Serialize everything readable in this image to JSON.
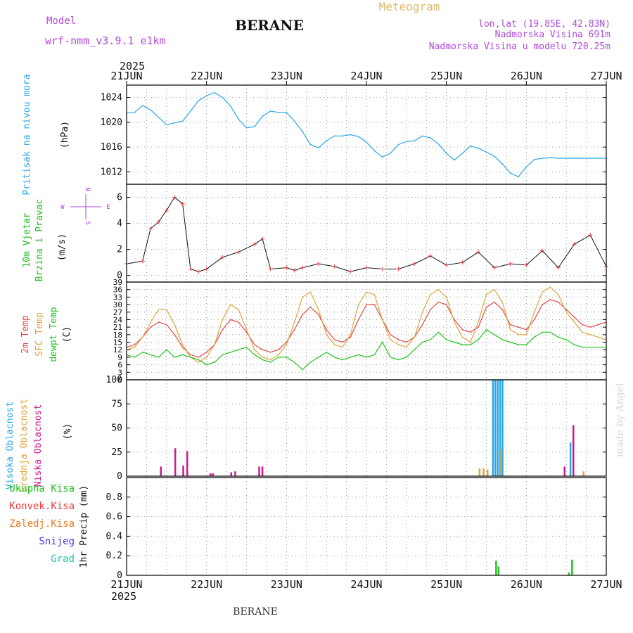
{
  "header": {
    "model_label": "Model",
    "model_name": "wrf-nmm_v3.9.1 e1km",
    "station": "BERANE",
    "product": "Meteogram",
    "lonlat": "lon,lat (19.85E, 42.83N)",
    "elevation": "Nadmorska Visina 691m",
    "model_elevation": "Nadmorska Visina u modelu 720.25m",
    "year_top": "2025",
    "year_bottom": "2025",
    "footer_station": "BERANE",
    "credit": "made by Angel",
    "wind_compass": {
      "n": "N",
      "s": "S",
      "e": "E",
      "w": "W"
    }
  },
  "colors": {
    "pressure": "#2aa6e6",
    "wind_axis": "#22bb22",
    "t2m": "#e04a4a",
    "sfc": "#e0a43c",
    "dew": "#22c322",
    "cloud_high": "#2aa6e6",
    "cloud_mid": "#e0a43c",
    "cloud_low": "#cc1a8a",
    "precip_total": "#22c322",
    "precip_conv": "#ee3a3a",
    "precip_frz": "#ee7a22",
    "precip_snow": "#4a3ae0",
    "precip_grad": "#22c3a8",
    "header_purple": "#b04ad8",
    "header_orange": "#e0b86a"
  },
  "chart_data": [
    {
      "type": "line",
      "panel": "pressure",
      "ylabel_lines": [
        "Pritisak na nivou mora"
      ],
      "unit": "(hPa)",
      "ylim": [
        1010,
        1026
      ],
      "yticks": [
        1012,
        1016,
        1020,
        1024
      ],
      "x_ticks": [
        "21JUN",
        "22JUN",
        "23JUN",
        "24JUN",
        "25JUN",
        "26JUN",
        "27JUN"
      ],
      "grid": true,
      "series": [
        {
          "x": [
            0,
            0.1,
            0.2,
            0.3,
            0.5,
            0.6,
            0.7,
            0.8,
            0.9,
            1.0,
            1.1,
            1.2,
            1.3,
            1.4,
            1.5,
            1.6,
            1.7,
            1.8,
            1.9,
            2.0,
            2.1,
            2.2,
            2.3,
            2.4,
            2.5,
            2.6,
            2.7,
            2.8,
            2.9,
            3.0,
            3.1,
            3.2,
            3.3,
            3.4,
            3.5,
            3.6,
            3.7,
            3.8,
            3.9,
            4.0,
            4.1,
            4.2,
            4.3,
            4.4,
            4.5,
            4.6,
            4.7,
            4.8,
            4.9,
            5.0,
            5.1,
            5.2,
            5.3,
            5.4,
            5.5,
            5.6,
            5.7,
            5.8,
            5.9,
            6.0
          ],
          "values": [
            1021.5,
            1021.6,
            1022.7,
            1022.0,
            1019.6,
            1019.9,
            1020.2,
            1021.8,
            1023.5,
            1024.3,
            1024.8,
            1024.0,
            1022.6,
            1020.5,
            1019.1,
            1019.3,
            1021.0,
            1021.8,
            1021.6,
            1021.6,
            1020.2,
            1018.5,
            1016.4,
            1015.9,
            1017.0,
            1017.8,
            1017.8,
            1018.0,
            1017.7,
            1016.8,
            1015.4,
            1014.4,
            1015.0,
            1016.4,
            1016.9,
            1017.0,
            1017.8,
            1017.5,
            1016.5,
            1015.0,
            1013.9,
            1015.0,
            1016.2,
            1015.8,
            1015.2,
            1014.5,
            1013.3,
            1011.8,
            1011.2,
            1012.8,
            1014.0,
            1014.2,
            1014.3,
            1014.2,
            1014.2,
            1014.2,
            1014.2,
            1014.2,
            1014.2,
            1014.2
          ]
        }
      ]
    },
    {
      "type": "line",
      "panel": "wind",
      "ylabel_lines": [
        "10m Vjetar",
        "Brzina i Pravac"
      ],
      "unit": "(m/s)",
      "ylim": [
        -0.5,
        7
      ],
      "yticks": [
        0,
        2,
        4,
        6
      ],
      "grid": true,
      "series": [
        {
          "x": [
            0,
            0.2,
            0.3,
            0.4,
            0.5,
            0.6,
            0.7,
            0.8,
            0.9,
            1.0,
            1.2,
            1.4,
            1.6,
            1.7,
            1.8,
            2.0,
            2.1,
            2.2,
            2.4,
            2.6,
            2.8,
            3.0,
            3.2,
            3.4,
            3.6,
            3.8,
            4.0,
            4.2,
            4.4,
            4.6,
            4.8,
            5.0,
            5.2,
            5.4,
            5.6,
            5.8,
            6.0
          ],
          "values": [
            0.9,
            1.1,
            3.6,
            4.1,
            5.0,
            6.0,
            5.5,
            0.5,
            0.3,
            0.5,
            1.4,
            1.8,
            2.4,
            2.8,
            0.5,
            0.6,
            0.4,
            0.6,
            0.9,
            0.7,
            0.3,
            0.6,
            0.5,
            0.5,
            0.9,
            1.5,
            0.8,
            1.0,
            1.8,
            0.6,
            0.9,
            0.8,
            1.9,
            0.6,
            2.4,
            3.1,
            0.7
          ]
        }
      ]
    },
    {
      "type": "line",
      "panel": "temperature",
      "ylabel_lines": [
        "2m Temp",
        "SFC Temp",
        "dewpt Temp"
      ],
      "unit": "(C)",
      "ylim": [
        0,
        39
      ],
      "yticks": [
        0,
        3,
        6,
        9,
        12,
        15,
        18,
        21,
        24,
        27,
        30,
        33,
        36,
        39
      ],
      "grid": true,
      "series": [
        {
          "name": "2m Temp",
          "x": [
            0,
            0.1,
            0.2,
            0.3,
            0.4,
            0.5,
            0.6,
            0.7,
            0.8,
            0.9,
            1.0,
            1.1,
            1.2,
            1.3,
            1.4,
            1.5,
            1.6,
            1.7,
            1.8,
            1.9,
            2.0,
            2.1,
            2.2,
            2.3,
            2.4,
            2.5,
            2.6,
            2.7,
            2.8,
            2.9,
            3.0,
            3.1,
            3.2,
            3.3,
            3.4,
            3.5,
            3.6,
            3.7,
            3.8,
            3.9,
            4.0,
            4.1,
            4.2,
            4.3,
            4.4,
            4.5,
            4.6,
            4.7,
            4.8,
            4.9,
            5.0,
            5.1,
            5.2,
            5.3,
            5.4,
            5.5,
            5.6,
            5.7,
            5.8,
            5.9,
            6.0
          ],
          "values": [
            13,
            14,
            17,
            21,
            23,
            22,
            18,
            13,
            10,
            9,
            11,
            14,
            20,
            24,
            23,
            19,
            14,
            12,
            11,
            12,
            15,
            20,
            26,
            29,
            26,
            20,
            16,
            15,
            17,
            24,
            30,
            30,
            24,
            18,
            16,
            15,
            17,
            22,
            28,
            31,
            30,
            24,
            20,
            19,
            21,
            29,
            31,
            28,
            22,
            21,
            20,
            24,
            30,
            32,
            31,
            28,
            25,
            22,
            21,
            22,
            23
          ]
        },
        {
          "name": "SFC Temp",
          "x": [
            0,
            0.1,
            0.2,
            0.3,
            0.4,
            0.5,
            0.6,
            0.7,
            0.8,
            0.9,
            1.0,
            1.1,
            1.2,
            1.3,
            1.4,
            1.5,
            1.6,
            1.7,
            1.8,
            1.9,
            2.0,
            2.1,
            2.2,
            2.3,
            2.4,
            2.5,
            2.6,
            2.7,
            2.8,
            2.9,
            3.0,
            3.1,
            3.2,
            3.3,
            3.4,
            3.5,
            3.6,
            3.7,
            3.8,
            3.9,
            4.0,
            4.1,
            4.2,
            4.3,
            4.4,
            4.5,
            4.6,
            4.7,
            4.8,
            4.9,
            5.0,
            5.1,
            5.2,
            5.3,
            5.4,
            5.5,
            5.6,
            5.7,
            5.8,
            5.9,
            6.0
          ],
          "values": [
            12,
            13,
            17,
            23,
            28,
            28,
            22,
            14,
            9,
            7,
            9,
            14,
            24,
            30,
            28,
            20,
            12,
            9,
            8,
            10,
            14,
            23,
            33,
            35,
            28,
            18,
            14,
            13,
            18,
            30,
            35,
            34,
            24,
            16,
            14,
            13,
            17,
            27,
            34,
            36,
            33,
            23,
            17,
            15,
            23,
            34,
            36,
            31,
            20,
            18,
            18,
            27,
            35,
            37,
            34,
            27,
            23,
            19,
            18,
            17,
            16
          ]
        },
        {
          "name": "dewpt Temp",
          "x": [
            0,
            0.1,
            0.2,
            0.3,
            0.4,
            0.5,
            0.6,
            0.7,
            0.8,
            0.9,
            1.0,
            1.1,
            1.2,
            1.3,
            1.4,
            1.5,
            1.6,
            1.7,
            1.8,
            1.9,
            2.0,
            2.1,
            2.2,
            2.3,
            2.4,
            2.5,
            2.6,
            2.7,
            2.8,
            2.9,
            3.0,
            3.1,
            3.2,
            3.3,
            3.4,
            3.5,
            3.6,
            3.7,
            3.8,
            3.9,
            4.0,
            4.1,
            4.2,
            4.3,
            4.4,
            4.5,
            4.6,
            4.7,
            4.8,
            4.9,
            5.0,
            5.1,
            5.2,
            5.3,
            5.4,
            5.5,
            5.6,
            5.7,
            5.8,
            5.9,
            6.0
          ],
          "values": [
            10,
            9,
            11,
            10,
            9,
            12,
            9,
            10,
            9,
            8,
            6,
            7,
            10,
            11,
            12,
            13,
            10,
            8,
            7,
            9,
            9,
            7,
            4,
            7,
            9,
            11,
            9,
            8,
            9,
            10,
            9,
            10,
            15,
            9,
            8,
            9,
            12,
            15,
            16,
            19,
            16,
            15,
            14,
            14,
            16,
            20,
            18,
            16,
            15,
            14,
            14,
            17,
            19,
            19,
            17,
            16,
            14,
            13,
            13,
            13,
            13
          ]
        }
      ]
    },
    {
      "type": "bar",
      "panel": "cloud",
      "ylabel_lines": [
        "Visoka Oblacnost",
        "Srednja Oblacnost",
        "Niska Oblacnost"
      ],
      "unit": "(%)",
      "ylim": [
        0,
        100
      ],
      "yticks": [
        0,
        25,
        50,
        75,
        100
      ],
      "grid": true,
      "series": [
        {
          "name": "Visoka Oblacnost",
          "x": [
            4.58,
            4.61,
            4.64,
            4.67,
            4.7,
            5.55
          ],
          "values": [
            100,
            100,
            100,
            100,
            100,
            35
          ]
        },
        {
          "name": "Srednja Oblacnost",
          "x": [
            4.4,
            4.45,
            4.5,
            4.67,
            5.7
          ],
          "values": [
            8,
            8,
            7,
            27,
            5
          ]
        },
        {
          "name": "Niska Oblacnost",
          "x": [
            0.4,
            0.58,
            0.68,
            0.73,
            1.02,
            1.05,
            1.28,
            1.33,
            1.63,
            1.67,
            5.45,
            5.56
          ],
          "values": [
            10,
            29,
            11,
            26,
            3,
            3,
            4,
            5,
            10,
            10,
            10,
            53
          ]
        }
      ]
    },
    {
      "type": "bar",
      "panel": "precip",
      "ylabel_lines": [
        "Ukupna Kisa",
        "Konvek.Kisa",
        "Zaledj.Kisa",
        "Snijeg",
        "Grad"
      ],
      "unit": "1hr Precip (mm)",
      "ylim": [
        0,
        1.0
      ],
      "yticks": [
        0,
        0.2,
        0.4,
        0.6,
        0.8
      ],
      "grid": true,
      "series": [
        {
          "name": "Ukupna Kisa",
          "x": [
            4.62,
            4.65,
            5.53,
            5.57
          ],
          "values": [
            0.15,
            0.09,
            0.03,
            0.16
          ]
        }
      ]
    }
  ]
}
